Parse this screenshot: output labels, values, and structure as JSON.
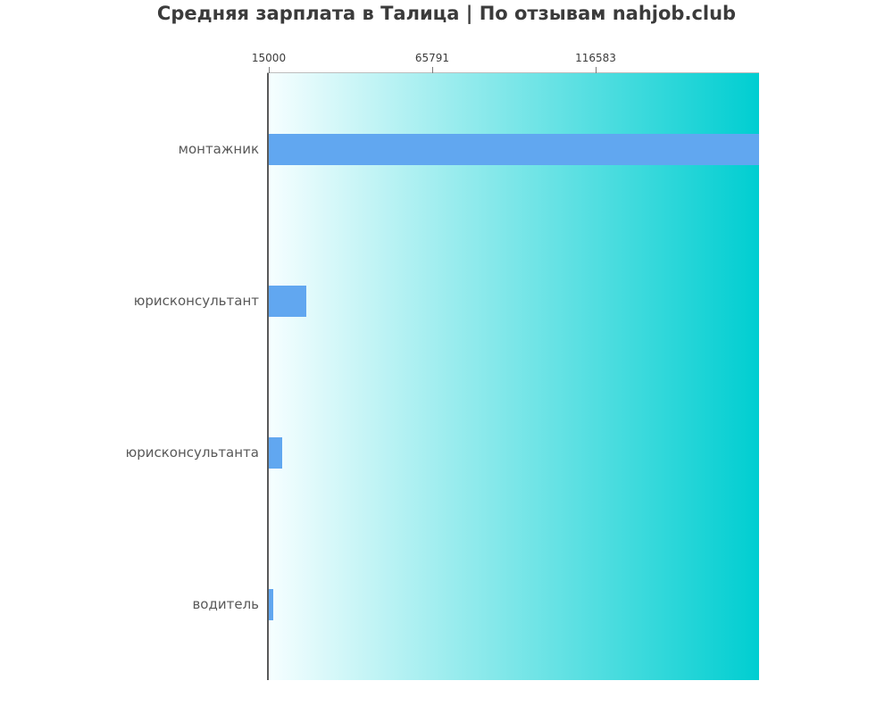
{
  "page": {
    "title": "Средняя зарплата в Талица | По отзывам nahjob.club"
  },
  "colors": {
    "background": "#ffffff",
    "bar": "#61a7f0",
    "plot_gradient_left": "#f6feff",
    "plot_gradient_right": "#00ced1",
    "title_text": "#3b3b3b",
    "category_text": "#595959",
    "tick_text": "#3c3c3c",
    "left_spine": "#5a5a5a",
    "top_spine": "#bdbdbd",
    "tick_mark": "#7a7a7a"
  },
  "chart_data": {
    "type": "bar",
    "orientation": "horizontal",
    "title": "Средняя зарплата в Талица | По отзывам nahjob.club",
    "categories": [
      "монтажник",
      "юрисконсультант",
      "юрисконсультанта",
      "водитель"
    ],
    "values": [
      167374,
      26700,
      19200,
      16400
    ],
    "xlabel": "",
    "ylabel": "",
    "xlim": [
      15000,
      167374
    ],
    "xtick_labels": [
      "15000",
      "65791",
      "116583"
    ],
    "xtick_values": [
      15000,
      65791,
      116583
    ],
    "grid": false,
    "legend": false,
    "plot_background": "horizontal linear gradient, white (left) to dark turquoise (right)"
  }
}
